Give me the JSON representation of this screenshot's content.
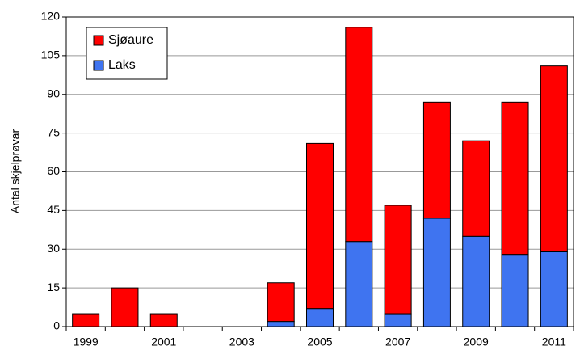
{
  "chart_data": {
    "type": "stacked_bar",
    "y_label": "Antal skjelprøvar",
    "categories": [
      "1999",
      null,
      "2001",
      null,
      "2003",
      null,
      "2005",
      null,
      "2007",
      null,
      "2009",
      null,
      "2011"
    ],
    "series": [
      {
        "name": "Laks",
        "color": "#3f74f0",
        "values": [
          0,
          0,
          0,
          0,
          0,
          2,
          7,
          33,
          5,
          42,
          35,
          28,
          29
        ]
      },
      {
        "name": "Sjøaure",
        "color": "#ff0000",
        "values": [
          5,
          15,
          5,
          0,
          0,
          15,
          64,
          83,
          42,
          45,
          37,
          59,
          72
        ]
      }
    ],
    "ylim": [
      0,
      120
    ],
    "yticks": [
      0,
      15,
      30,
      45,
      60,
      75,
      90,
      105,
      120
    ],
    "grid": true,
    "legend": "upper left"
  }
}
